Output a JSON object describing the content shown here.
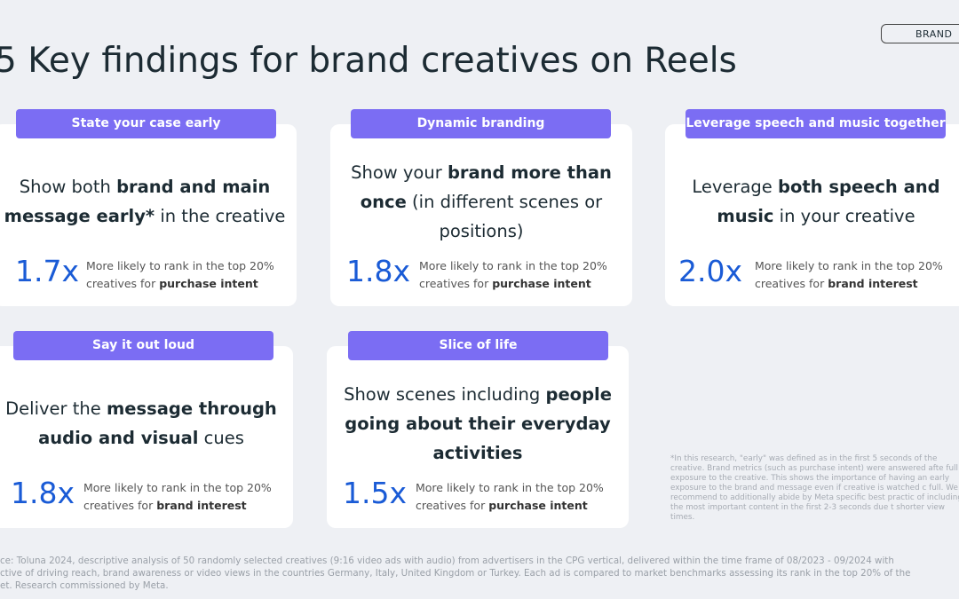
{
  "header": {
    "badge": "BRAND",
    "title": "5 Key findings for brand creatives on Reels"
  },
  "cards": [
    {
      "label": "State your case early",
      "text": [
        {
          "text": "Show both ",
          "bold": false
        },
        {
          "text": "brand and main message early*",
          "bold": true
        },
        {
          "text": " in the creative",
          "bold": false
        }
      ],
      "stat": "1.7x",
      "desc": [
        {
          "text": "More likely to rank in the top 20% creatives for ",
          "bold": false
        },
        {
          "text": "purchase intent",
          "bold": true
        }
      ]
    },
    {
      "label": "Dynamic branding",
      "text": [
        {
          "text": "Show your ",
          "bold": false
        },
        {
          "text": "brand more than once",
          "bold": true
        },
        {
          "text": " (in different scenes or positions)",
          "bold": false
        }
      ],
      "stat": "1.8x",
      "desc": [
        {
          "text": "More likely to rank in the top 20% creatives for ",
          "bold": false
        },
        {
          "text": "purchase intent",
          "bold": true
        }
      ]
    },
    {
      "label": "Leverage speech and music together",
      "text": [
        {
          "text": "Leverage ",
          "bold": false
        },
        {
          "text": "both speech and music",
          "bold": true
        },
        {
          "text": " in your creative",
          "bold": false
        }
      ],
      "stat": "2.0x",
      "desc": [
        {
          "text": "More likely to rank in the top 20% creatives for ",
          "bold": false
        },
        {
          "text": "brand interest",
          "bold": true
        }
      ]
    },
    {
      "label": "Say it out loud",
      "text": [
        {
          "text": "Deliver the ",
          "bold": false
        },
        {
          "text": "message through audio and visual",
          "bold": true
        },
        {
          "text": " cues",
          "bold": false
        }
      ],
      "stat": "1.8x",
      "desc": [
        {
          "text": "More likely to rank in the top 20% creatives for ",
          "bold": false
        },
        {
          "text": "brand interest",
          "bold": true
        }
      ]
    },
    {
      "label": "Slice of life",
      "text": [
        {
          "text": "Show scenes including ",
          "bold": false
        },
        {
          "text": "people going about their everyday activities",
          "bold": true
        }
      ],
      "stat": "1.5x",
      "desc": [
        {
          "text": "More likely to rank in the top 20% creatives for ",
          "bold": false
        },
        {
          "text": "purchase intent",
          "bold": true
        }
      ]
    }
  ],
  "footnote": "*In this research, \"early\" was defined as in the first 5 seconds of the creative. Brand metrics (such as purchase intent) were answered afte full exposure to the creative. This shows the importance of having an early exposure to the brand and message even if creative is watched c full. We recommend to additionally abide by Meta specific best practic of including the most important content in the first 2-3 seconds due t shorter view times.",
  "source": [
    "ce: Toluna 2024, descriptive analysis of 50 randomly selected creatives (9:16 video ads with audio) from advertisers in the CPG vertical, delivered within the time frame of 08/2023 - 09/2024 with",
    "ctive of driving reach, brand awareness or video views in the countries Germany, Italy, United Kingdom or Turkey. Each ad is compared to market benchmarks assessing its rank in the top 20% of the",
    "et. Research commissioned by Meta."
  ]
}
